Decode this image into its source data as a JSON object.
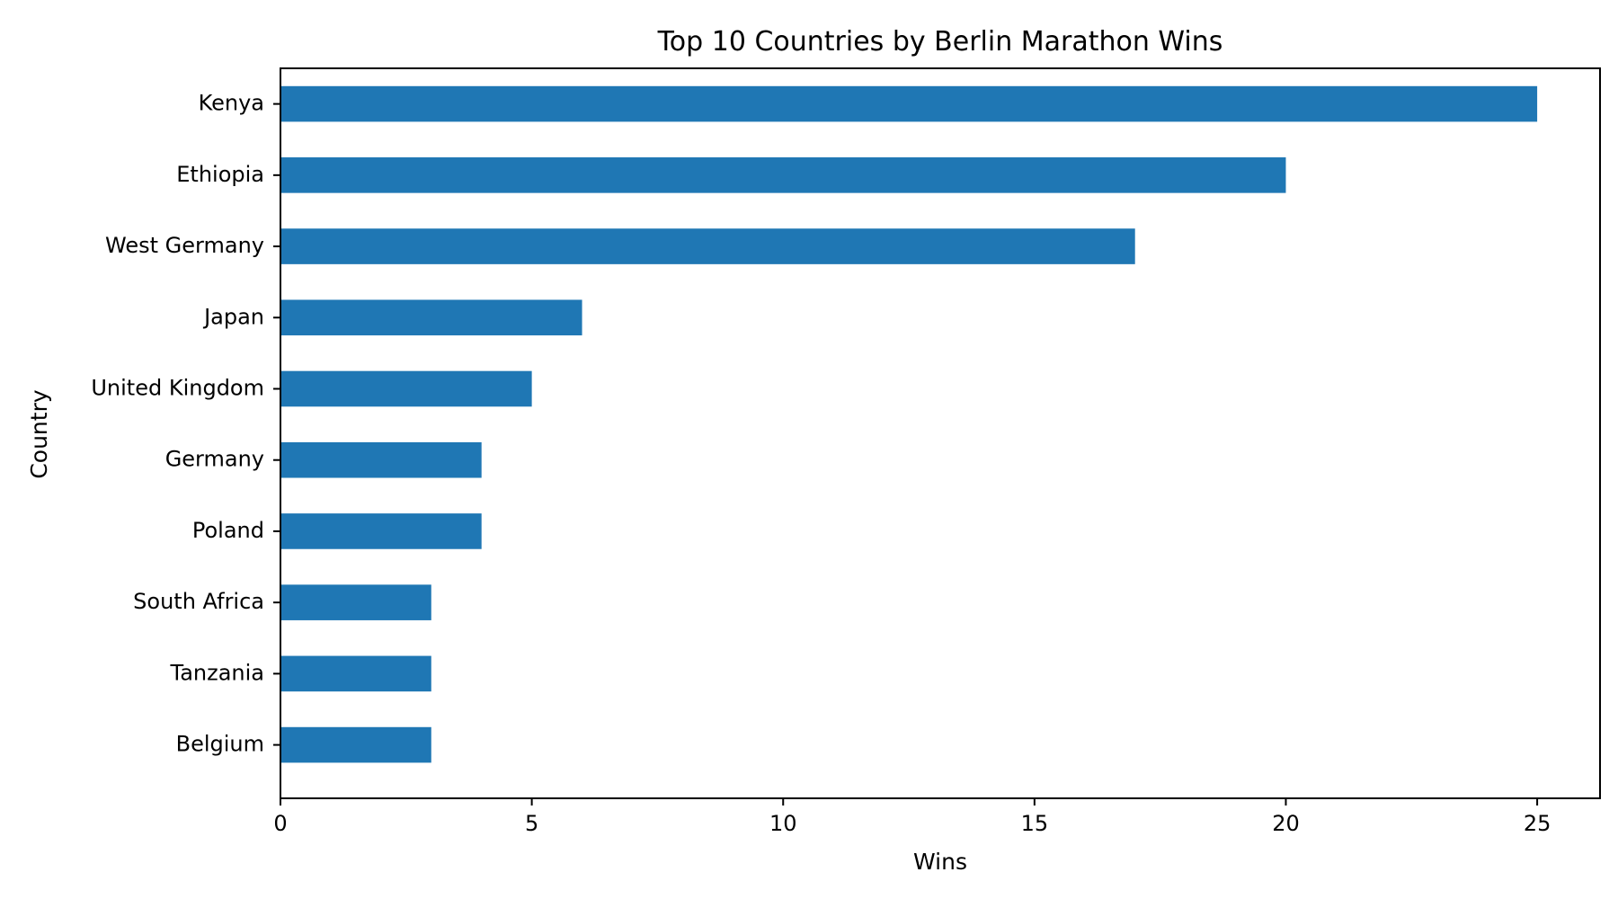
{
  "chart_data": {
    "type": "bar",
    "orientation": "horizontal",
    "title": "Top 10 Countries by Berlin Marathon Wins",
    "xlabel": "Wins",
    "ylabel": "Country",
    "categories": [
      "Kenya",
      "Ethiopia",
      "West Germany",
      "Japan",
      "United Kingdom",
      "Germany",
      "Poland",
      "South Africa",
      "Tanzania",
      "Belgium"
    ],
    "values": [
      25,
      20,
      17,
      6,
      5,
      4,
      4,
      3,
      3,
      3
    ],
    "xlim": [
      0,
      26.25
    ],
    "xticks": [
      0,
      5,
      10,
      15,
      20,
      25
    ],
    "grid": false,
    "legend": "none",
    "bar_color": "#1f77b4"
  }
}
